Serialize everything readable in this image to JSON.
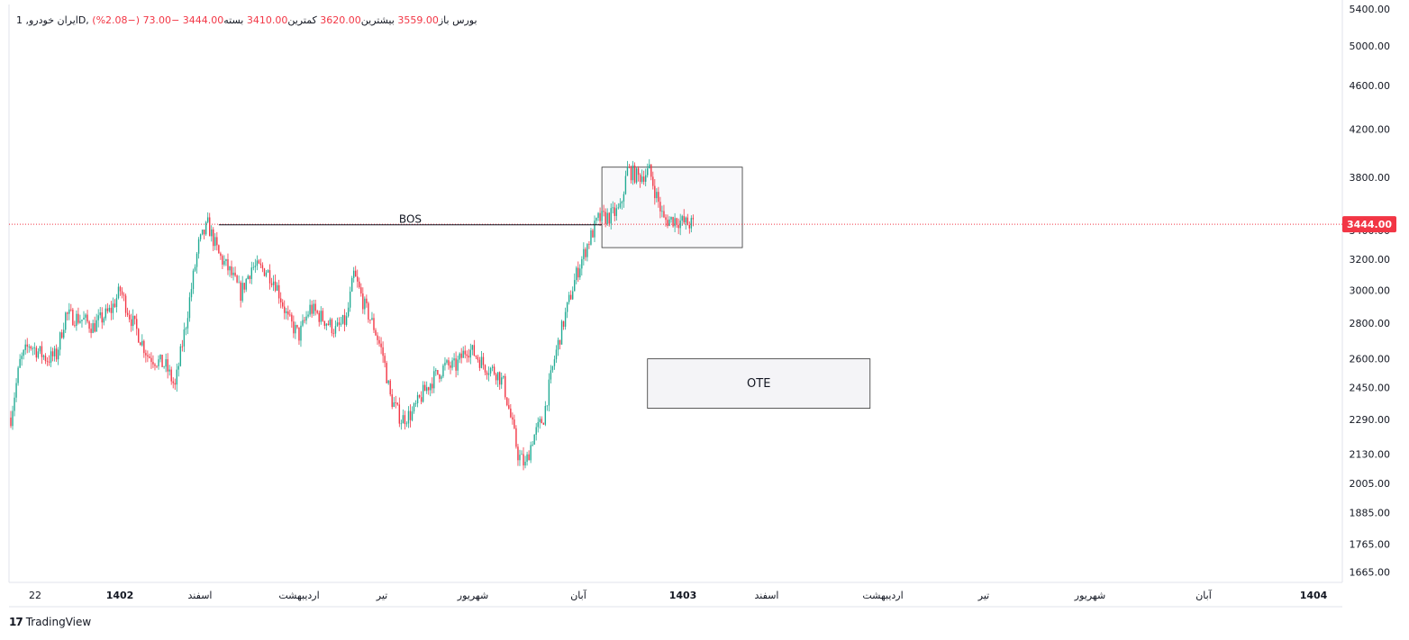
{
  "legend": {
    "symbol": "ایران خودرو, 1D, بورس",
    "open_label": "باز",
    "open_value": "3559.00",
    "high_label": "بیشترین",
    "high_value": "3620.00",
    "low_label": "کمترین",
    "low_value": "3410.00",
    "close_label": "بسته",
    "close_value": "3444.00",
    "change": "−73.00 (−2.08%)"
  },
  "brand": {
    "name": "TradingView",
    "logo": "tradingview-logo"
  },
  "colors": {
    "up": "#22ab94",
    "down": "#f23645",
    "grid": "#f0f3fa",
    "axis_text": "#131722",
    "price_badge": "#f23645",
    "box_fill": "#f4f4f7",
    "box_border": "#333333"
  },
  "chart_data": {
    "type": "candlestick",
    "title": "",
    "y_axis": {
      "ticks": [
        "5400.00",
        "5000.00",
        "4600.00",
        "4200.00",
        "3800.00",
        "3400.00",
        "3200.00",
        "3000.00",
        "2800.00",
        "2600.00",
        "2450.00",
        "2290.00",
        "2130.00",
        "2005.00",
        "1885.00",
        "1765.00",
        "1665.00"
      ],
      "scale": "log",
      "range": [
        1630,
        5450
      ],
      "current_price": "3444.00"
    },
    "x_axis": {
      "ticks": [
        "22",
        "1402",
        "اسفند",
        "اردیبهشت",
        "تیر",
        "شهریور",
        "آبان",
        "1403",
        "اسفند",
        "اردیبهشت",
        "تیر",
        "شهریور",
        "آبان",
        "1404"
      ],
      "bold": [
        false,
        true,
        false,
        false,
        false,
        false,
        false,
        true,
        false,
        false,
        false,
        false,
        false,
        true
      ]
    },
    "trend_anchors": [
      [
        0,
        2300
      ],
      [
        5,
        2580
      ],
      [
        10,
        2680
      ],
      [
        20,
        2600
      ],
      [
        25,
        2620
      ],
      [
        30,
        2850
      ],
      [
        40,
        2820
      ],
      [
        45,
        2780
      ],
      [
        55,
        2880
      ],
      [
        60,
        3000
      ],
      [
        65,
        2850
      ],
      [
        75,
        2620
      ],
      [
        85,
        2560
      ],
      [
        90,
        2450
      ],
      [
        96,
        2800
      ],
      [
        103,
        3300
      ],
      [
        108,
        3440
      ],
      [
        114,
        3230
      ],
      [
        120,
        3120
      ],
      [
        126,
        2980
      ],
      [
        132,
        3150
      ],
      [
        140,
        3130
      ],
      [
        145,
        3050
      ],
      [
        152,
        2820
      ],
      [
        158,
        2730
      ],
      [
        164,
        2890
      ],
      [
        172,
        2820
      ],
      [
        178,
        2760
      ],
      [
        184,
        2820
      ],
      [
        188,
        3100
      ],
      [
        194,
        2900
      ],
      [
        199,
        2780
      ],
      [
        204,
        2620
      ],
      [
        208,
        2400
      ],
      [
        214,
        2290
      ],
      [
        220,
        2320
      ],
      [
        226,
        2420
      ],
      [
        232,
        2500
      ],
      [
        238,
        2560
      ],
      [
        244,
        2560
      ],
      [
        250,
        2660
      ],
      [
        254,
        2630
      ],
      [
        260,
        2560
      ],
      [
        266,
        2530
      ],
      [
        270,
        2470
      ],
      [
        274,
        2300
      ],
      [
        278,
        2130
      ],
      [
        282,
        2080
      ],
      [
        286,
        2200
      ],
      [
        292,
        2300
      ],
      [
        298,
        2600
      ],
      [
        304,
        2850
      ],
      [
        310,
        3100
      ],
      [
        316,
        3300
      ],
      [
        322,
        3480
      ],
      [
        328,
        3500
      ],
      [
        334,
        3550
      ],
      [
        338,
        3860
      ],
      [
        344,
        3800
      ],
      [
        350,
        3850
      ],
      [
        354,
        3650
      ],
      [
        358,
        3470
      ],
      [
        364,
        3480
      ],
      [
        370,
        3450
      ],
      [
        374,
        3444
      ]
    ],
    "annotations": [
      {
        "type": "hline",
        "label": "BOS",
        "from_bar": 114,
        "to_bar": 324,
        "price": 3440
      },
      {
        "type": "rectangle",
        "label": "",
        "bar_range": [
          324,
          401
        ],
        "price_range": [
          3280,
          3880
        ]
      },
      {
        "type": "rectangle",
        "label": "OTE",
        "bar_range": [
          349,
          471
        ],
        "price_range": [
          2345,
          2600
        ]
      }
    ]
  }
}
